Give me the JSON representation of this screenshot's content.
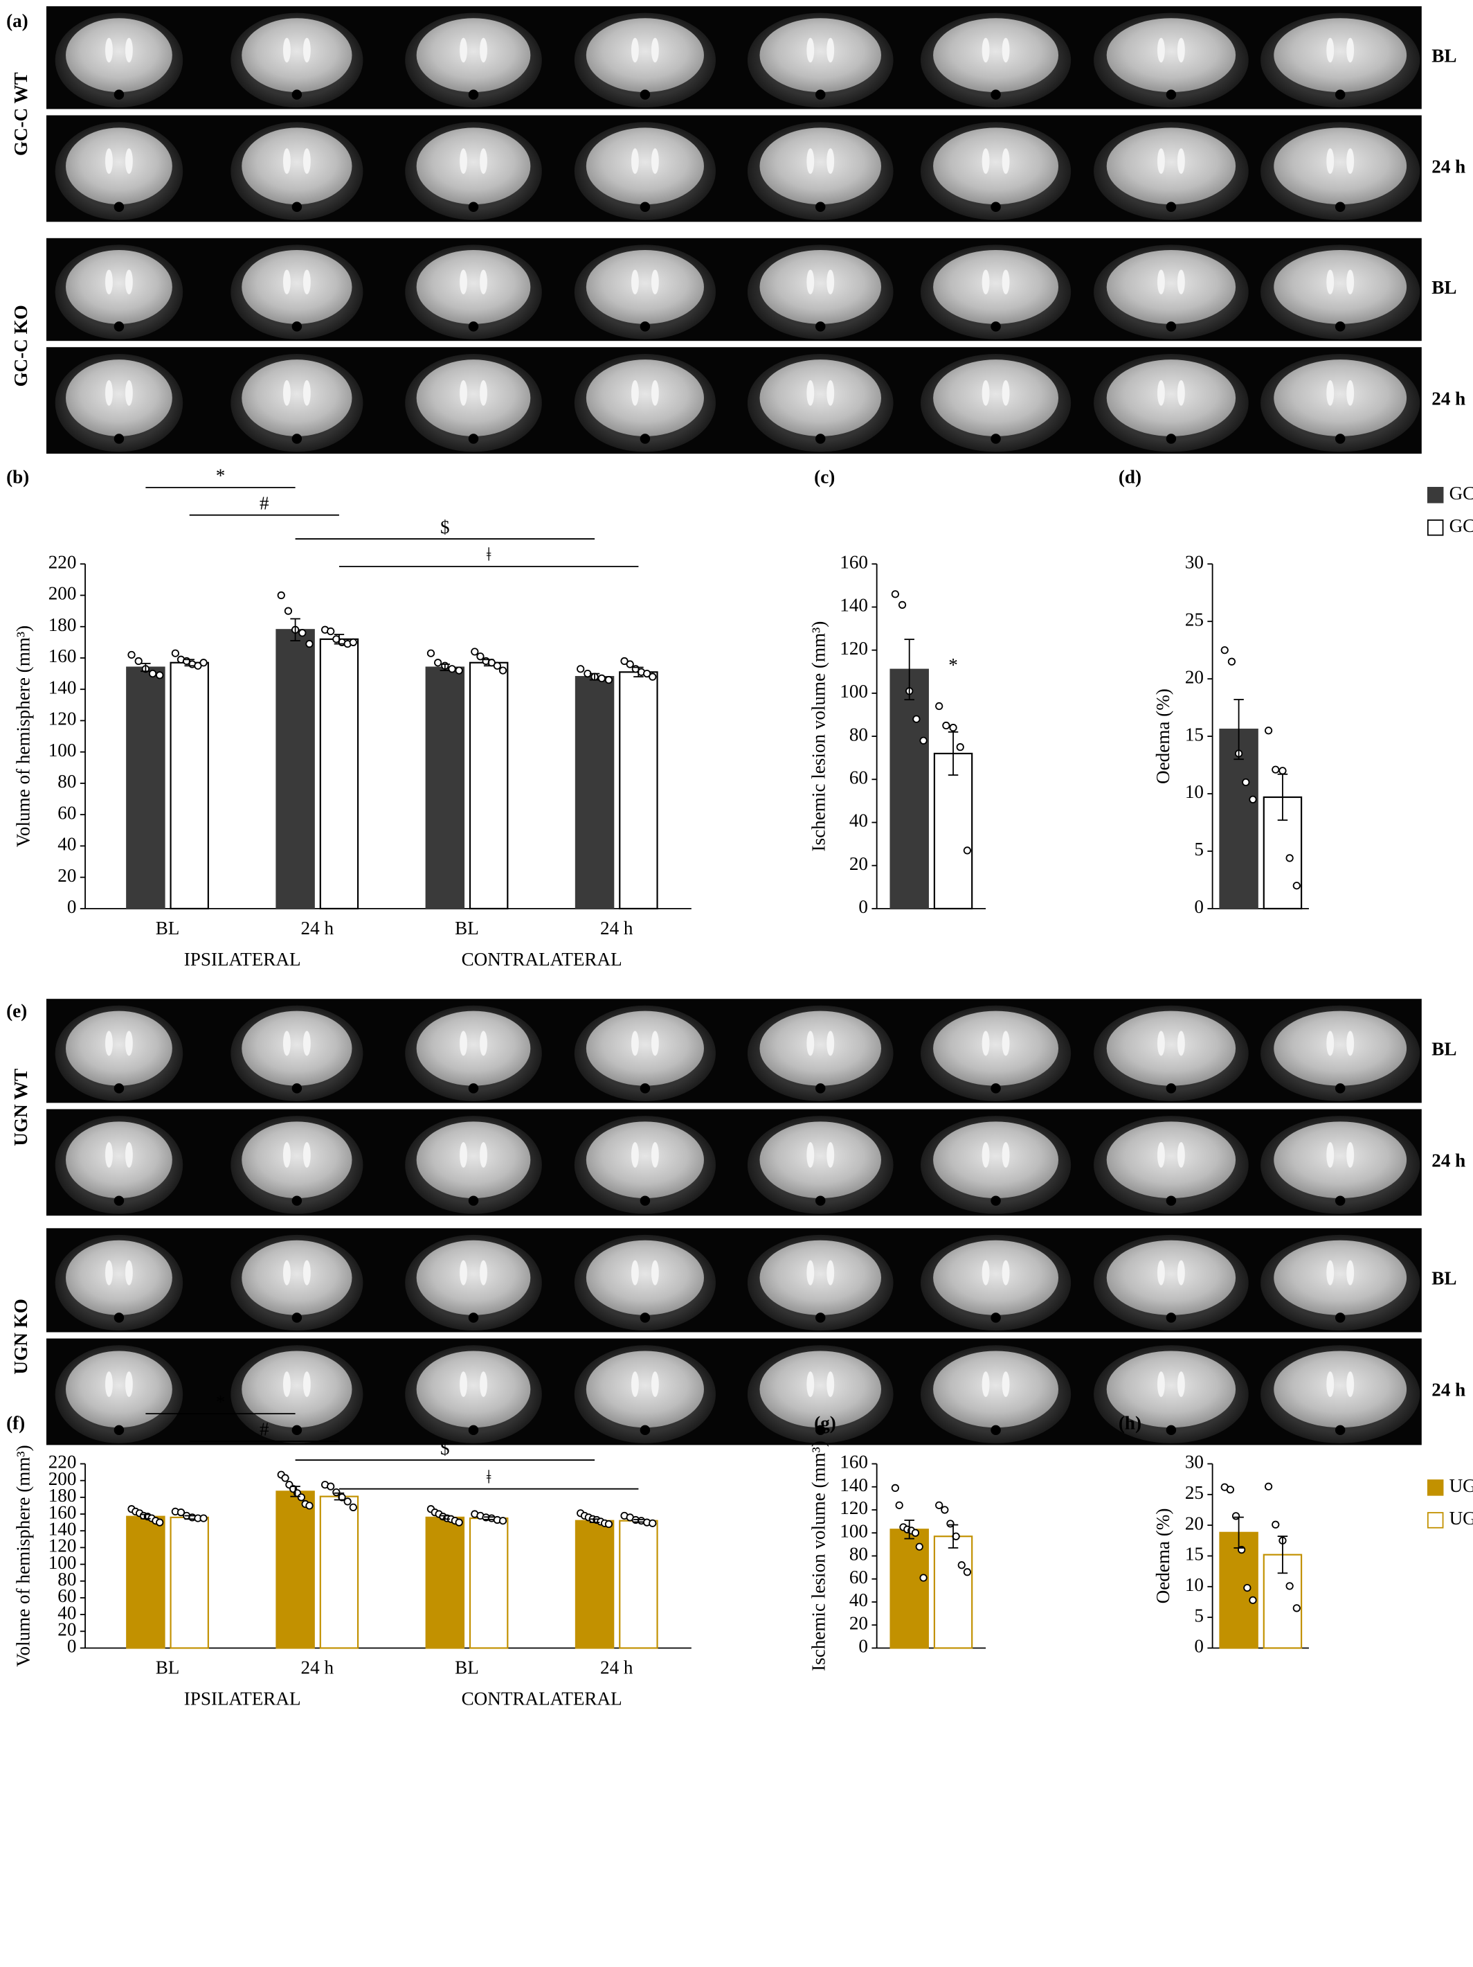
{
  "mri": [
    {
      "panel": "(a)",
      "groups": [
        {
          "name": "GC-C WT",
          "rows": [
            "BL",
            "24 h"
          ]
        },
        {
          "name": "GC-C KO",
          "rows": [
            "BL",
            "24 h"
          ]
        }
      ]
    },
    {
      "panel": "(e)",
      "groups": [
        {
          "name": "UGN WT",
          "rows": [
            "BL",
            "24 h"
          ]
        },
        {
          "name": "UGN KO",
          "rows": [
            "BL",
            "24 h"
          ]
        }
      ]
    }
  ],
  "chart_data": [
    {
      "type": "bar",
      "panel": "(b)",
      "ylabel": "Volume of hemisphere (mm³)",
      "categories": [
        "BL",
        "24 h",
        "BL",
        "24 h"
      ],
      "groups": [
        "IPSILATERAL",
        "CONTRALATERAL"
      ],
      "ylim": [
        0,
        220
      ],
      "yticks": [
        0,
        20,
        40,
        60,
        80,
        100,
        120,
        140,
        160,
        180,
        200,
        220
      ],
      "series": [
        {
          "color": "#3a3a3a",
          "edgecolor": "#3a3a3a",
          "values": [
            154,
            178,
            154,
            148
          ],
          "errors": [
            2.5,
            7,
            2,
            2
          ],
          "points": [
            [
              162,
              158,
              153,
              150,
              149
            ],
            [
              200,
              190,
              178,
              176,
              169
            ],
            [
              163,
              157,
              155,
              153,
              152
            ],
            [
              153,
              150,
              148,
              147,
              146
            ]
          ]
        },
        {
          "color": "#ffffff",
          "edgecolor": "#000000",
          "values": [
            157,
            172,
            157,
            151
          ],
          "errors": [
            2,
            3,
            2,
            3
          ],
          "points": [
            [
              163,
              159,
              158,
              156,
              155,
              157
            ],
            [
              178,
              177,
              172,
              170,
              169,
              170
            ],
            [
              164,
              161,
              158,
              157,
              155,
              152
            ],
            [
              158,
              156,
              153,
              151,
              150,
              148
            ]
          ]
        }
      ],
      "brackets": [
        {
          "label": "*",
          "from": [
            0,
            0
          ],
          "to": [
            0,
            1
          ]
        },
        {
          "label": "#",
          "from": [
            1,
            0
          ],
          "to": [
            1,
            1
          ]
        },
        {
          "label": "$",
          "from": [
            0,
            1
          ],
          "to": [
            0,
            3
          ]
        },
        {
          "label": "ǂ",
          "from": [
            1,
            1
          ],
          "to": [
            1,
            3
          ]
        }
      ]
    },
    {
      "type": "bar",
      "panel": "(c)",
      "ylabel": "Ischemic lesion volume (mm³)",
      "ylim": [
        0,
        160
      ],
      "yticks": [
        0,
        20,
        40,
        60,
        80,
        100,
        120,
        140,
        160
      ],
      "series": [
        {
          "color": "#3a3a3a",
          "edgecolor": "#3a3a3a",
          "values": [
            111
          ],
          "errors": [
            14
          ],
          "points": [
            [
              146,
              141,
              101,
              88,
              78
            ]
          ]
        },
        {
          "color": "#ffffff",
          "edgecolor": "#000000",
          "values": [
            72
          ],
          "errors": [
            10
          ],
          "points": [
            [
              94,
              85,
              84,
              75,
              27
            ]
          ],
          "annotations": [
            "*"
          ]
        }
      ]
    },
    {
      "type": "bar",
      "panel": "(d)",
      "ylabel": "Oedema (%)",
      "ylim": [
        0,
        30
      ],
      "yticks": [
        0,
        5,
        10,
        15,
        20,
        25,
        30
      ],
      "legend": "upper right",
      "series": [
        {
          "name": "GC-C WT",
          "color": "#3a3a3a",
          "edgecolor": "#3a3a3a",
          "values": [
            15.6
          ],
          "errors": [
            2.6
          ],
          "points": [
            [
              22.5,
              21.5,
              13.5,
              11,
              9.5
            ]
          ]
        },
        {
          "name": "GC-C KO",
          "color": "#ffffff",
          "edgecolor": "#000000",
          "values": [
            9.7
          ],
          "errors": [
            2
          ],
          "points": [
            [
              15.5,
              12.1,
              12,
              4.4,
              2
            ]
          ]
        }
      ]
    },
    {
      "type": "bar",
      "panel": "(f)",
      "ylabel": "Volume of hemisphere (mm³)",
      "categories": [
        "BL",
        "24 h",
        "BL",
        "24 h"
      ],
      "groups": [
        "IPSILATERAL",
        "CONTRALATERAL"
      ],
      "ylim": [
        0,
        220
      ],
      "yticks": [
        0,
        20,
        40,
        60,
        80,
        100,
        120,
        140,
        160,
        180,
        200,
        220
      ],
      "series": [
        {
          "color": "#c29100",
          "edgecolor": "#c29100",
          "values": [
            157,
            187,
            156,
            152
          ],
          "errors": [
            2.5,
            6,
            2,
            2
          ],
          "points": [
            [
              166,
              163,
              161,
              158,
              157,
              155,
              152,
              150
            ],
            [
              207,
              203,
              195,
              190,
              185,
              180,
              172,
              170
            ],
            [
              166,
              162,
              160,
              157,
              155,
              154,
              152,
              150
            ],
            [
              161,
              158,
              156,
              154,
              153,
              151,
              149,
              148
            ]
          ]
        },
        {
          "color": "#ffffff",
          "edgecolor": "#c29100",
          "values": [
            156,
            181,
            155,
            152
          ],
          "errors": [
            2,
            4,
            1.5,
            1.5
          ],
          "points": [
            [
              163,
              162,
              158,
              156,
              155,
              155
            ],
            [
              195,
              193,
              186,
              180,
              175,
              168
            ],
            [
              160,
              158,
              156,
              155,
              153,
              152
            ],
            [
              158,
              156,
              153,
              152,
              150,
              149
            ]
          ]
        }
      ],
      "brackets": [
        {
          "label": "*",
          "from": [
            0,
            0
          ],
          "to": [
            0,
            1
          ]
        },
        {
          "label": "#",
          "from": [
            1,
            0
          ],
          "to": [
            1,
            1
          ]
        },
        {
          "label": "$",
          "from": [
            0,
            1
          ],
          "to": [
            0,
            3
          ]
        },
        {
          "label": "ǂ",
          "from": [
            1,
            1
          ],
          "to": [
            1,
            3
          ]
        }
      ]
    },
    {
      "type": "bar",
      "panel": "(g)",
      "ylabel": "Ischemic lesion volume (mm³)",
      "ylim": [
        0,
        160
      ],
      "yticks": [
        0,
        20,
        40,
        60,
        80,
        100,
        120,
        140,
        160
      ],
      "series": [
        {
          "color": "#c29100",
          "edgecolor": "#c29100",
          "values": [
            103
          ],
          "errors": [
            8
          ],
          "points": [
            [
              139,
              124,
              105,
              103,
              102,
              100,
              88,
              61
            ]
          ]
        },
        {
          "color": "#ffffff",
          "edgecolor": "#c29100",
          "values": [
            97
          ],
          "errors": [
            10
          ],
          "points": [
            [
              124,
              120,
              108,
              97,
              72,
              66
            ]
          ]
        }
      ]
    },
    {
      "type": "bar",
      "panel": "(h)",
      "ylabel": "Oedema (%)",
      "ylim": [
        0,
        30
      ],
      "yticks": [
        0,
        5,
        10,
        15,
        20,
        25,
        30
      ],
      "legend": "upper right",
      "series": [
        {
          "name": "UGN WT",
          "color": "#c29100",
          "edgecolor": "#c29100",
          "values": [
            18.8
          ],
          "errors": [
            2.5
          ],
          "points": [
            [
              26.2,
              25.8,
              21.5,
              16,
              9.8,
              7.8
            ]
          ]
        },
        {
          "name": "UGN KO",
          "color": "#ffffff",
          "edgecolor": "#c29100",
          "values": [
            15.2
          ],
          "errors": [
            3
          ],
          "points": [
            [
              26.3,
              20.1,
              17.5,
              10.1,
              6.5
            ]
          ]
        }
      ]
    }
  ]
}
